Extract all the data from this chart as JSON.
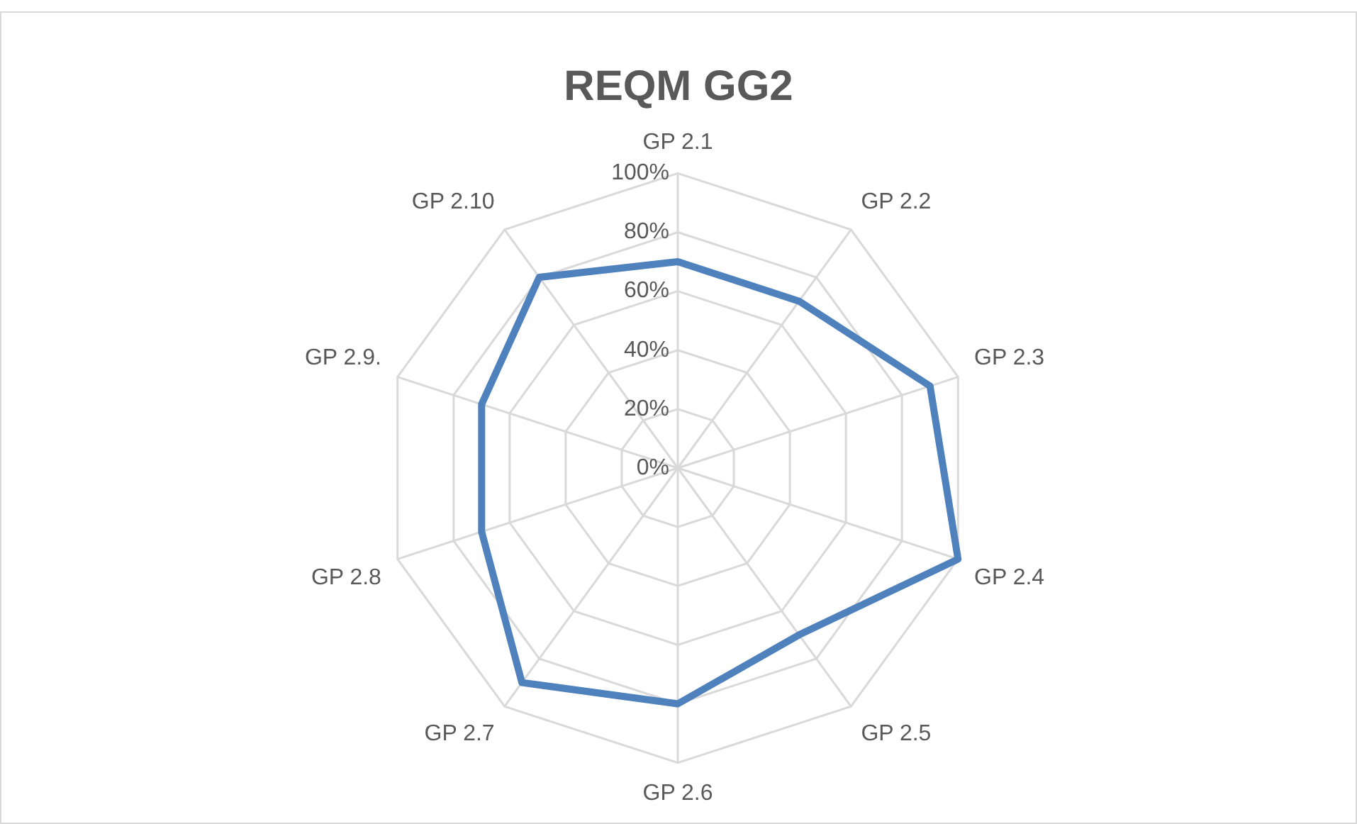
{
  "chart_data": {
    "type": "radar",
    "title": "REQM GG2",
    "categories": [
      "GP 2.1",
      "GP 2.2",
      "GP 2.3",
      "GP 2.4",
      "GP 2.5",
      "GP 2.6",
      "GP 2.7",
      "GP 2.8",
      "GP 2.9.",
      "GP 2.10"
    ],
    "series": [
      {
        "color": "#4f81bd",
        "values": [
          70,
          70,
          90,
          100,
          70,
          80,
          90,
          70,
          70,
          80
        ]
      }
    ],
    "ylim": [
      0,
      100
    ],
    "yticks": [
      {
        "value": 0,
        "label": "0%"
      },
      {
        "value": 20,
        "label": "20%"
      },
      {
        "value": 40,
        "label": "40%"
      },
      {
        "value": 60,
        "label": "60%"
      },
      {
        "value": 80,
        "label": "80%"
      },
      {
        "value": 100,
        "label": "100%"
      }
    ],
    "grid": true,
    "legend": false,
    "marker": "none",
    "line_style": "solid"
  }
}
